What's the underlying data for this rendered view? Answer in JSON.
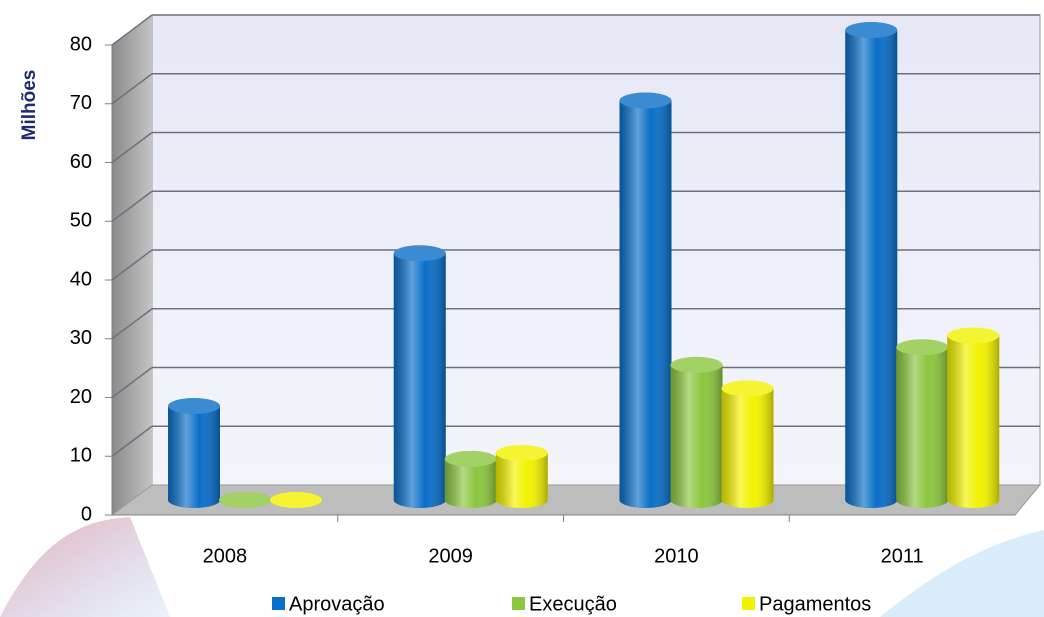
{
  "chart_data": {
    "type": "bar3d",
    "y_label": "Milhões",
    "categories": [
      "2008",
      "2009",
      "2010",
      "2011"
    ],
    "series": [
      {
        "name": "Aprovação",
        "color": "#0a6fc8",
        "values": [
          16,
          42,
          68,
          80
        ]
      },
      {
        "name": "Execução",
        "color": "#8cc63f",
        "values": [
          0,
          7,
          23,
          26
        ]
      },
      {
        "name": "Pagamentos",
        "color": "#f2f200",
        "values": [
          0,
          8,
          19,
          28
        ]
      }
    ],
    "ylim": [
      0,
      80
    ],
    "yticks": [
      0,
      10,
      20,
      30,
      40,
      50,
      60,
      70,
      80
    ],
    "grid": true,
    "legend": "bottom"
  }
}
